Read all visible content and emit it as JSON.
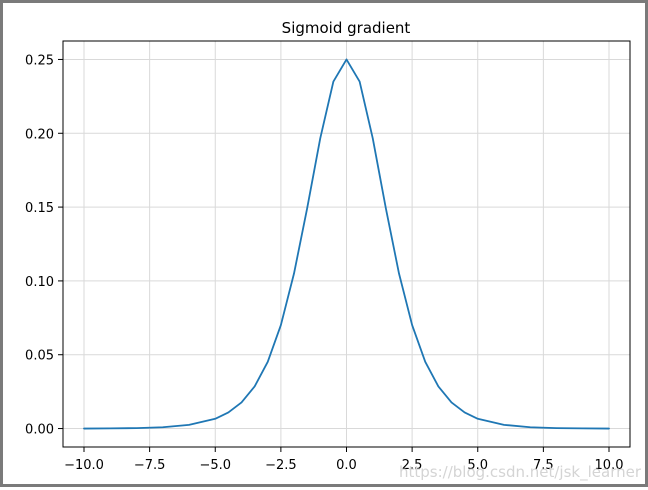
{
  "chart_data": {
    "type": "line",
    "title": "Sigmoid gradient",
    "xlabel": "",
    "ylabel": "",
    "xlim": [
      -10.8,
      10.8
    ],
    "ylim": [
      -0.0125,
      0.2625
    ],
    "x_ticks": [
      -10.0,
      -7.5,
      -5.0,
      -2.5,
      0.0,
      2.5,
      5.0,
      7.5,
      10.0
    ],
    "x_tick_labels": [
      "−10.0",
      "−7.5",
      "−5.0",
      "−2.5",
      "0.0",
      "2.5",
      "5.0",
      "7.5",
      "10.0"
    ],
    "y_ticks": [
      0.0,
      0.05,
      0.1,
      0.15,
      0.2,
      0.25
    ],
    "y_tick_labels": [
      "0.00",
      "0.05",
      "0.10",
      "0.15",
      "0.20",
      "0.25"
    ],
    "grid": true,
    "legend": "none",
    "series": [
      {
        "color": "#1f77b4",
        "x": [
          -10.0,
          -9.0,
          -8.0,
          -7.0,
          -6.0,
          -5.0,
          -4.5,
          -4.0,
          -3.5,
          -3.0,
          -2.5,
          -2.0,
          -1.5,
          -1.0,
          -0.5,
          0.0,
          0.5,
          1.0,
          1.5,
          2.0,
          2.5,
          3.0,
          3.5,
          4.0,
          4.5,
          5.0,
          6.0,
          7.0,
          8.0,
          9.0,
          10.0
        ],
        "y": [
          0.0,
          0.0001,
          0.0003,
          0.0009,
          0.0025,
          0.0066,
          0.0109,
          0.0177,
          0.0285,
          0.0452,
          0.0701,
          0.105,
          0.1491,
          0.1966,
          0.235,
          0.25,
          0.235,
          0.1966,
          0.1491,
          0.105,
          0.0701,
          0.0452,
          0.0285,
          0.0177,
          0.0109,
          0.0066,
          0.0025,
          0.0009,
          0.0003,
          0.0001,
          0.0
        ]
      }
    ]
  },
  "watermark": "https://blog.csdn.net/jsk_learner"
}
